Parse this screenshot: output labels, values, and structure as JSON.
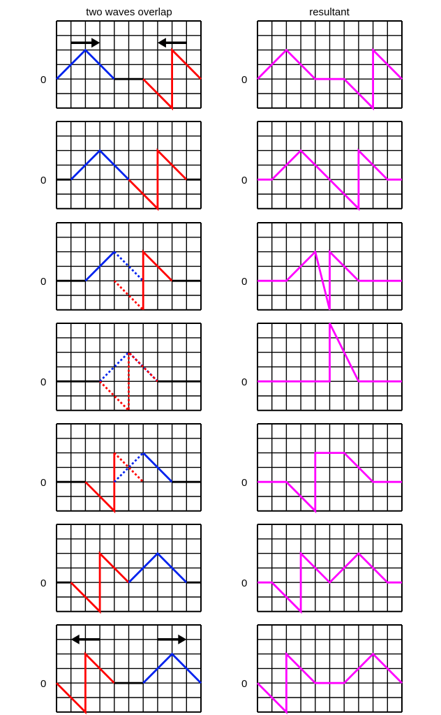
{
  "headers": {
    "left": "two waves overlap",
    "right": "resultant"
  },
  "zero_label": "0",
  "colors": {
    "wave_a": "#0022ee",
    "wave_b": "#ff0000",
    "resultant": "#ff00ff",
    "baseline": "#000000",
    "grid": "#000000"
  },
  "grid": {
    "cols": 10,
    "rows": 6,
    "unit_axis_row": 4
  },
  "arrows": {
    "first_panel": [
      {
        "direction": "right"
      },
      {
        "direction": "left"
      }
    ],
    "last_panel": [
      {
        "direction": "left"
      },
      {
        "direction": "right"
      }
    ]
  },
  "panels": [
    {
      "waves": [
        {
          "color": "wave_a",
          "points": [
            [
              0,
              0
            ],
            [
              2,
              2
            ],
            [
              4,
              0
            ]
          ]
        },
        {
          "color": "baseline",
          "points": [
            [
              4,
              0
            ],
            [
              6,
              0
            ]
          ]
        },
        {
          "color": "wave_b",
          "points": [
            [
              6,
              0
            ],
            [
              8,
              -2
            ],
            [
              8,
              2
            ],
            [
              10,
              0
            ]
          ]
        }
      ],
      "resultant": [
        [
          0,
          0
        ],
        [
          2,
          2
        ],
        [
          4,
          0
        ],
        [
          6,
          0
        ],
        [
          8,
          -2
        ],
        [
          8,
          2
        ],
        [
          10,
          0
        ]
      ]
    },
    {
      "waves": [
        {
          "color": "baseline",
          "points": [
            [
              0,
              0
            ],
            [
              1,
              0
            ]
          ]
        },
        {
          "color": "wave_a",
          "points": [
            [
              1,
              0
            ],
            [
              3,
              2
            ],
            [
              5,
              0
            ]
          ]
        },
        {
          "color": "wave_b",
          "points": [
            [
              5,
              0
            ],
            [
              7,
              -2
            ],
            [
              7,
              2
            ],
            [
              9,
              0
            ]
          ]
        },
        {
          "color": "baseline",
          "points": [
            [
              9,
              0
            ],
            [
              10,
              0
            ]
          ]
        }
      ],
      "resultant": [
        [
          0,
          0
        ],
        [
          1,
          0
        ],
        [
          3,
          2
        ],
        [
          5,
          0
        ],
        [
          7,
          -2
        ],
        [
          7,
          2
        ],
        [
          9,
          0
        ],
        [
          10,
          0
        ]
      ]
    },
    {
      "waves": [
        {
          "color": "baseline",
          "points": [
            [
              0,
              0
            ],
            [
              2,
              0
            ]
          ]
        },
        {
          "color": "wave_a",
          "points": [
            [
              2,
              0
            ],
            [
              4,
              2
            ]
          ]
        },
        {
          "color": "wave_a",
          "dashed": true,
          "points": [
            [
              4,
              2
            ],
            [
              6,
              0
            ]
          ]
        },
        {
          "color": "wave_b",
          "dashed": true,
          "points": [
            [
              4,
              0
            ],
            [
              6,
              -2
            ]
          ]
        },
        {
          "color": "wave_b",
          "points": [
            [
              6,
              -2
            ],
            [
              6,
              2
            ],
            [
              8,
              0
            ]
          ]
        },
        {
          "color": "baseline",
          "points": [
            [
              8,
              0
            ],
            [
              10,
              0
            ]
          ]
        }
      ],
      "resultant": [
        [
          0,
          0
        ],
        [
          2,
          0
        ],
        [
          4,
          2
        ],
        [
          5,
          -2
        ],
        [
          5,
          2
        ],
        [
          7,
          0
        ],
        [
          10,
          0
        ]
      ]
    },
    {
      "waves": [
        {
          "color": "baseline",
          "points": [
            [
              0,
              0
            ],
            [
              3,
              0
            ]
          ]
        },
        {
          "color": "wave_a",
          "dashed": true,
          "points": [
            [
              3,
              0
            ],
            [
              5,
              2
            ],
            [
              7,
              0
            ]
          ]
        },
        {
          "color": "wave_b",
          "dashed": true,
          "points": [
            [
              3,
              0
            ],
            [
              5,
              -2
            ],
            [
              5,
              2
            ],
            [
              7,
              0
            ]
          ]
        },
        {
          "color": "baseline",
          "points": [
            [
              7,
              0
            ],
            [
              10,
              0
            ]
          ]
        }
      ],
      "resultant": [
        [
          0,
          0
        ],
        [
          5,
          0
        ],
        [
          5,
          4
        ],
        [
          7,
          0
        ],
        [
          10,
          0
        ]
      ]
    },
    {
      "waves": [
        {
          "color": "baseline",
          "points": [
            [
              0,
              0
            ],
            [
              2,
              0
            ]
          ]
        },
        {
          "color": "wave_b",
          "points": [
            [
              2,
              0
            ],
            [
              4,
              -2
            ],
            [
              4,
              2
            ]
          ]
        },
        {
          "color": "wave_b",
          "dashed": true,
          "points": [
            [
              4,
              2
            ],
            [
              6,
              0
            ]
          ]
        },
        {
          "color": "wave_a",
          "dashed": true,
          "points": [
            [
              4,
              0
            ],
            [
              6,
              2
            ]
          ]
        },
        {
          "color": "wave_a",
          "points": [
            [
              6,
              2
            ],
            [
              8,
              0
            ]
          ]
        },
        {
          "color": "baseline",
          "points": [
            [
              8,
              0
            ],
            [
              10,
              0
            ]
          ]
        }
      ],
      "resultant": [
        [
          0,
          0
        ],
        [
          2,
          0
        ],
        [
          4,
          -2
        ],
        [
          4,
          2
        ],
        [
          6,
          2
        ],
        [
          8,
          0
        ],
        [
          10,
          0
        ]
      ]
    },
    {
      "waves": [
        {
          "color": "baseline",
          "points": [
            [
              0,
              0
            ],
            [
              1,
              0
            ]
          ]
        },
        {
          "color": "wave_b",
          "points": [
            [
              1,
              0
            ],
            [
              3,
              -2
            ],
            [
              3,
              2
            ],
            [
              5,
              0
            ]
          ]
        },
        {
          "color": "wave_a",
          "points": [
            [
              5,
              0
            ],
            [
              7,
              2
            ],
            [
              9,
              0
            ]
          ]
        },
        {
          "color": "baseline",
          "points": [
            [
              9,
              0
            ],
            [
              10,
              0
            ]
          ]
        }
      ],
      "resultant": [
        [
          0,
          0
        ],
        [
          1,
          0
        ],
        [
          3,
          -2
        ],
        [
          3,
          2
        ],
        [
          5,
          0
        ],
        [
          7,
          2
        ],
        [
          9,
          0
        ],
        [
          10,
          0
        ]
      ]
    },
    {
      "waves": [
        {
          "color": "wave_b",
          "points": [
            [
              0,
              0
            ],
            [
              2,
              -2
            ],
            [
              2,
              2
            ],
            [
              4,
              0
            ]
          ]
        },
        {
          "color": "baseline",
          "points": [
            [
              4,
              0
            ],
            [
              6,
              0
            ]
          ]
        },
        {
          "color": "wave_a",
          "points": [
            [
              6,
              0
            ],
            [
              8,
              2
            ],
            [
              10,
              0
            ]
          ]
        }
      ],
      "resultant": [
        [
          0,
          0
        ],
        [
          2,
          -2
        ],
        [
          2,
          2
        ],
        [
          4,
          0
        ],
        [
          6,
          0
        ],
        [
          8,
          2
        ],
        [
          10,
          0
        ]
      ]
    }
  ]
}
